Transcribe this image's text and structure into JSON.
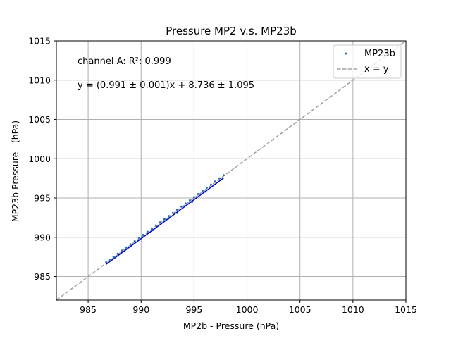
{
  "chart_data": {
    "type": "scatter",
    "title": "Pressure MP2 v.s. MP23b",
    "xlabel": "MP2b - Pressure (hPa)",
    "ylabel": "MP23b Pressure - (hPa)",
    "xlim": [
      982,
      1015
    ],
    "ylim": [
      982,
      1015
    ],
    "xticks": [
      985,
      990,
      995,
      1000,
      1005,
      1010,
      1015
    ],
    "yticks": [
      985,
      990,
      995,
      1000,
      1005,
      1010,
      1015
    ],
    "grid": true,
    "legend_position": "top-right",
    "annotations": [
      "channel A: R²: 0.999",
      "y = (0.991 ± 0.001)x + 8.736 ± 1.095"
    ],
    "series": [
      {
        "name": "MP23b",
        "kind": "scatter",
        "color": "#1f77b4",
        "x": [
          986.7,
          987.0,
          987.4,
          987.8,
          988.2,
          988.6,
          989.0,
          989.4,
          989.8,
          990.2,
          990.6,
          991.0,
          991.4,
          991.8,
          992.2,
          992.6,
          993.0,
          993.4,
          993.8,
          994.2,
          994.6,
          995.0,
          995.4,
          995.8,
          996.2,
          996.6,
          997.0,
          997.4,
          997.8,
          990.1,
          991.1,
          992.6,
          993.4,
          994.8,
          996.1
        ],
        "y": [
          986.8,
          987.1,
          987.5,
          987.9,
          988.3,
          988.7,
          989.1,
          989.5,
          989.9,
          990.3,
          990.7,
          991.1,
          991.5,
          991.9,
          992.3,
          992.7,
          993.1,
          993.5,
          993.9,
          994.3,
          994.7,
          995.1,
          995.5,
          995.9,
          996.3,
          996.7,
          997.1,
          997.5,
          997.9,
          990.0,
          990.9,
          992.4,
          993.1,
          994.5,
          995.8
        ]
      },
      {
        "name": "x = y",
        "kind": "line",
        "style": "dashed",
        "color": "#a0a0a0",
        "x": [
          982,
          1015
        ],
        "y": [
          982,
          1015
        ]
      }
    ],
    "fit_line": {
      "color": "#0000cc",
      "slope": 0.991,
      "intercept": 8.736,
      "x_range": [
        986.7,
        997.8
      ]
    }
  }
}
